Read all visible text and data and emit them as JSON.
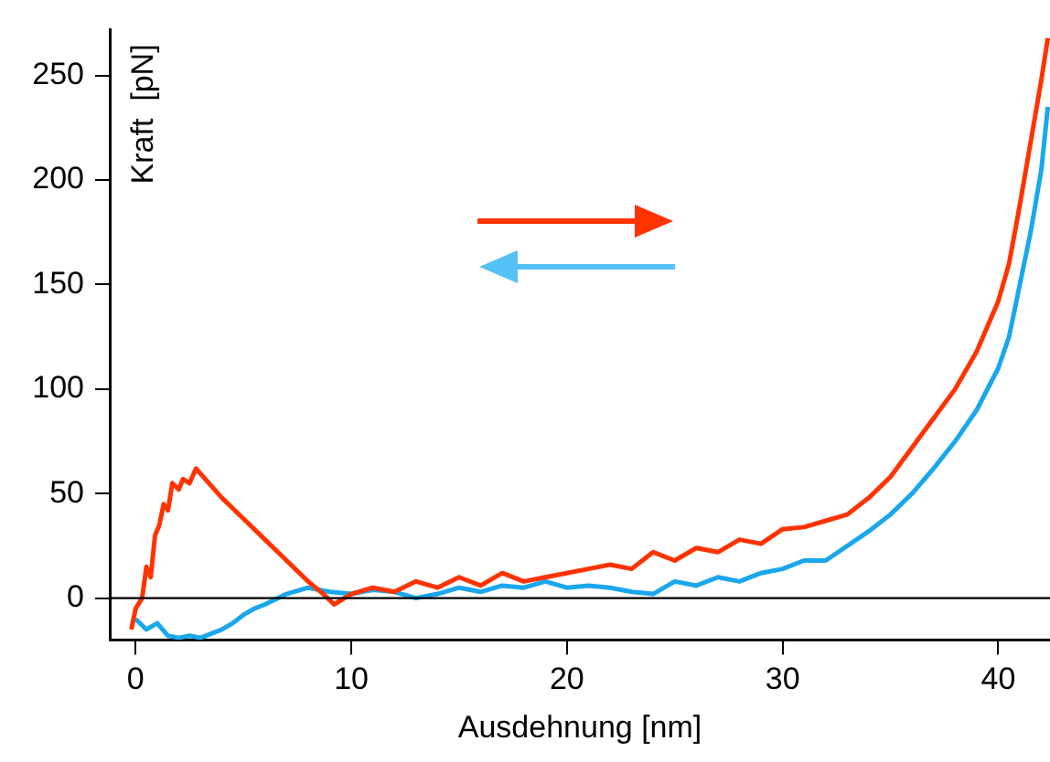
{
  "chart_data": {
    "type": "line",
    "xlabel": "Ausdehnung [nm]",
    "ylabel": "Kraft  [pN]",
    "xlim": [
      -1.2,
      42.4
    ],
    "ylim": [
      -20,
      272
    ],
    "xticks": [
      0,
      10,
      20,
      30,
      40
    ],
    "yticks": [
      0,
      50,
      100,
      150,
      200,
      250
    ],
    "grid": false,
    "legend": false,
    "marker": "none",
    "line_style": "solid",
    "ref_lines": [
      {
        "axis": "y",
        "value": 0,
        "color": "#000000"
      }
    ],
    "series": [
      {
        "color": "#ff3300",
        "x": [
          -0.2,
          0,
          0.3,
          0.5,
          0.7,
          0.9,
          1.1,
          1.3,
          1.5,
          1.7,
          2,
          2.2,
          2.5,
          2.8,
          4,
          5,
          6,
          7,
          8,
          8.7,
          9.2,
          10,
          11,
          12,
          13,
          14,
          15,
          16,
          17,
          18,
          19,
          20,
          21,
          22,
          23,
          24,
          25,
          26,
          27,
          28,
          29,
          30,
          31,
          32,
          33,
          34,
          35,
          36,
          37,
          38,
          39,
          40,
          40.5,
          41,
          41.5,
          42,
          42.3
        ],
        "values": [
          -15,
          -5,
          0,
          15,
          10,
          30,
          35,
          45,
          42,
          55,
          52,
          57,
          55,
          62,
          48,
          38,
          28,
          18,
          8,
          2,
          -3,
          2,
          5,
          3,
          8,
          5,
          10,
          6,
          12,
          8,
          10,
          12,
          14,
          16,
          14,
          22,
          18,
          24,
          22,
          28,
          26,
          33,
          34,
          37,
          40,
          48,
          58,
          72,
          86,
          100,
          118,
          142,
          160,
          188,
          218,
          248,
          268
        ]
      },
      {
        "color": "#1aa7ec",
        "x": [
          0,
          0.5,
          1,
          1.5,
          2,
          2.5,
          3,
          4,
          4.5,
          5,
          5.5,
          6,
          7,
          8,
          9,
          10,
          11,
          12,
          13,
          14,
          15,
          16,
          17,
          18,
          19,
          20,
          21,
          22,
          23,
          24,
          25,
          26,
          27,
          28,
          29,
          30,
          31,
          32,
          33,
          34,
          35,
          36,
          37,
          38,
          39,
          40,
          40.5,
          41,
          41.5,
          42,
          42.3
        ],
        "values": [
          -10,
          -15,
          -12,
          -18,
          -19,
          -18,
          -19,
          -15,
          -12,
          -8,
          -5,
          -3,
          2,
          5,
          3,
          2,
          4,
          3,
          0,
          2,
          5,
          3,
          6,
          5,
          8,
          5,
          6,
          5,
          3,
          2,
          8,
          6,
          10,
          8,
          12,
          14,
          18,
          18,
          25,
          32,
          40,
          50,
          62,
          75,
          90,
          110,
          125,
          150,
          175,
          205,
          235
        ]
      }
    ]
  }
}
